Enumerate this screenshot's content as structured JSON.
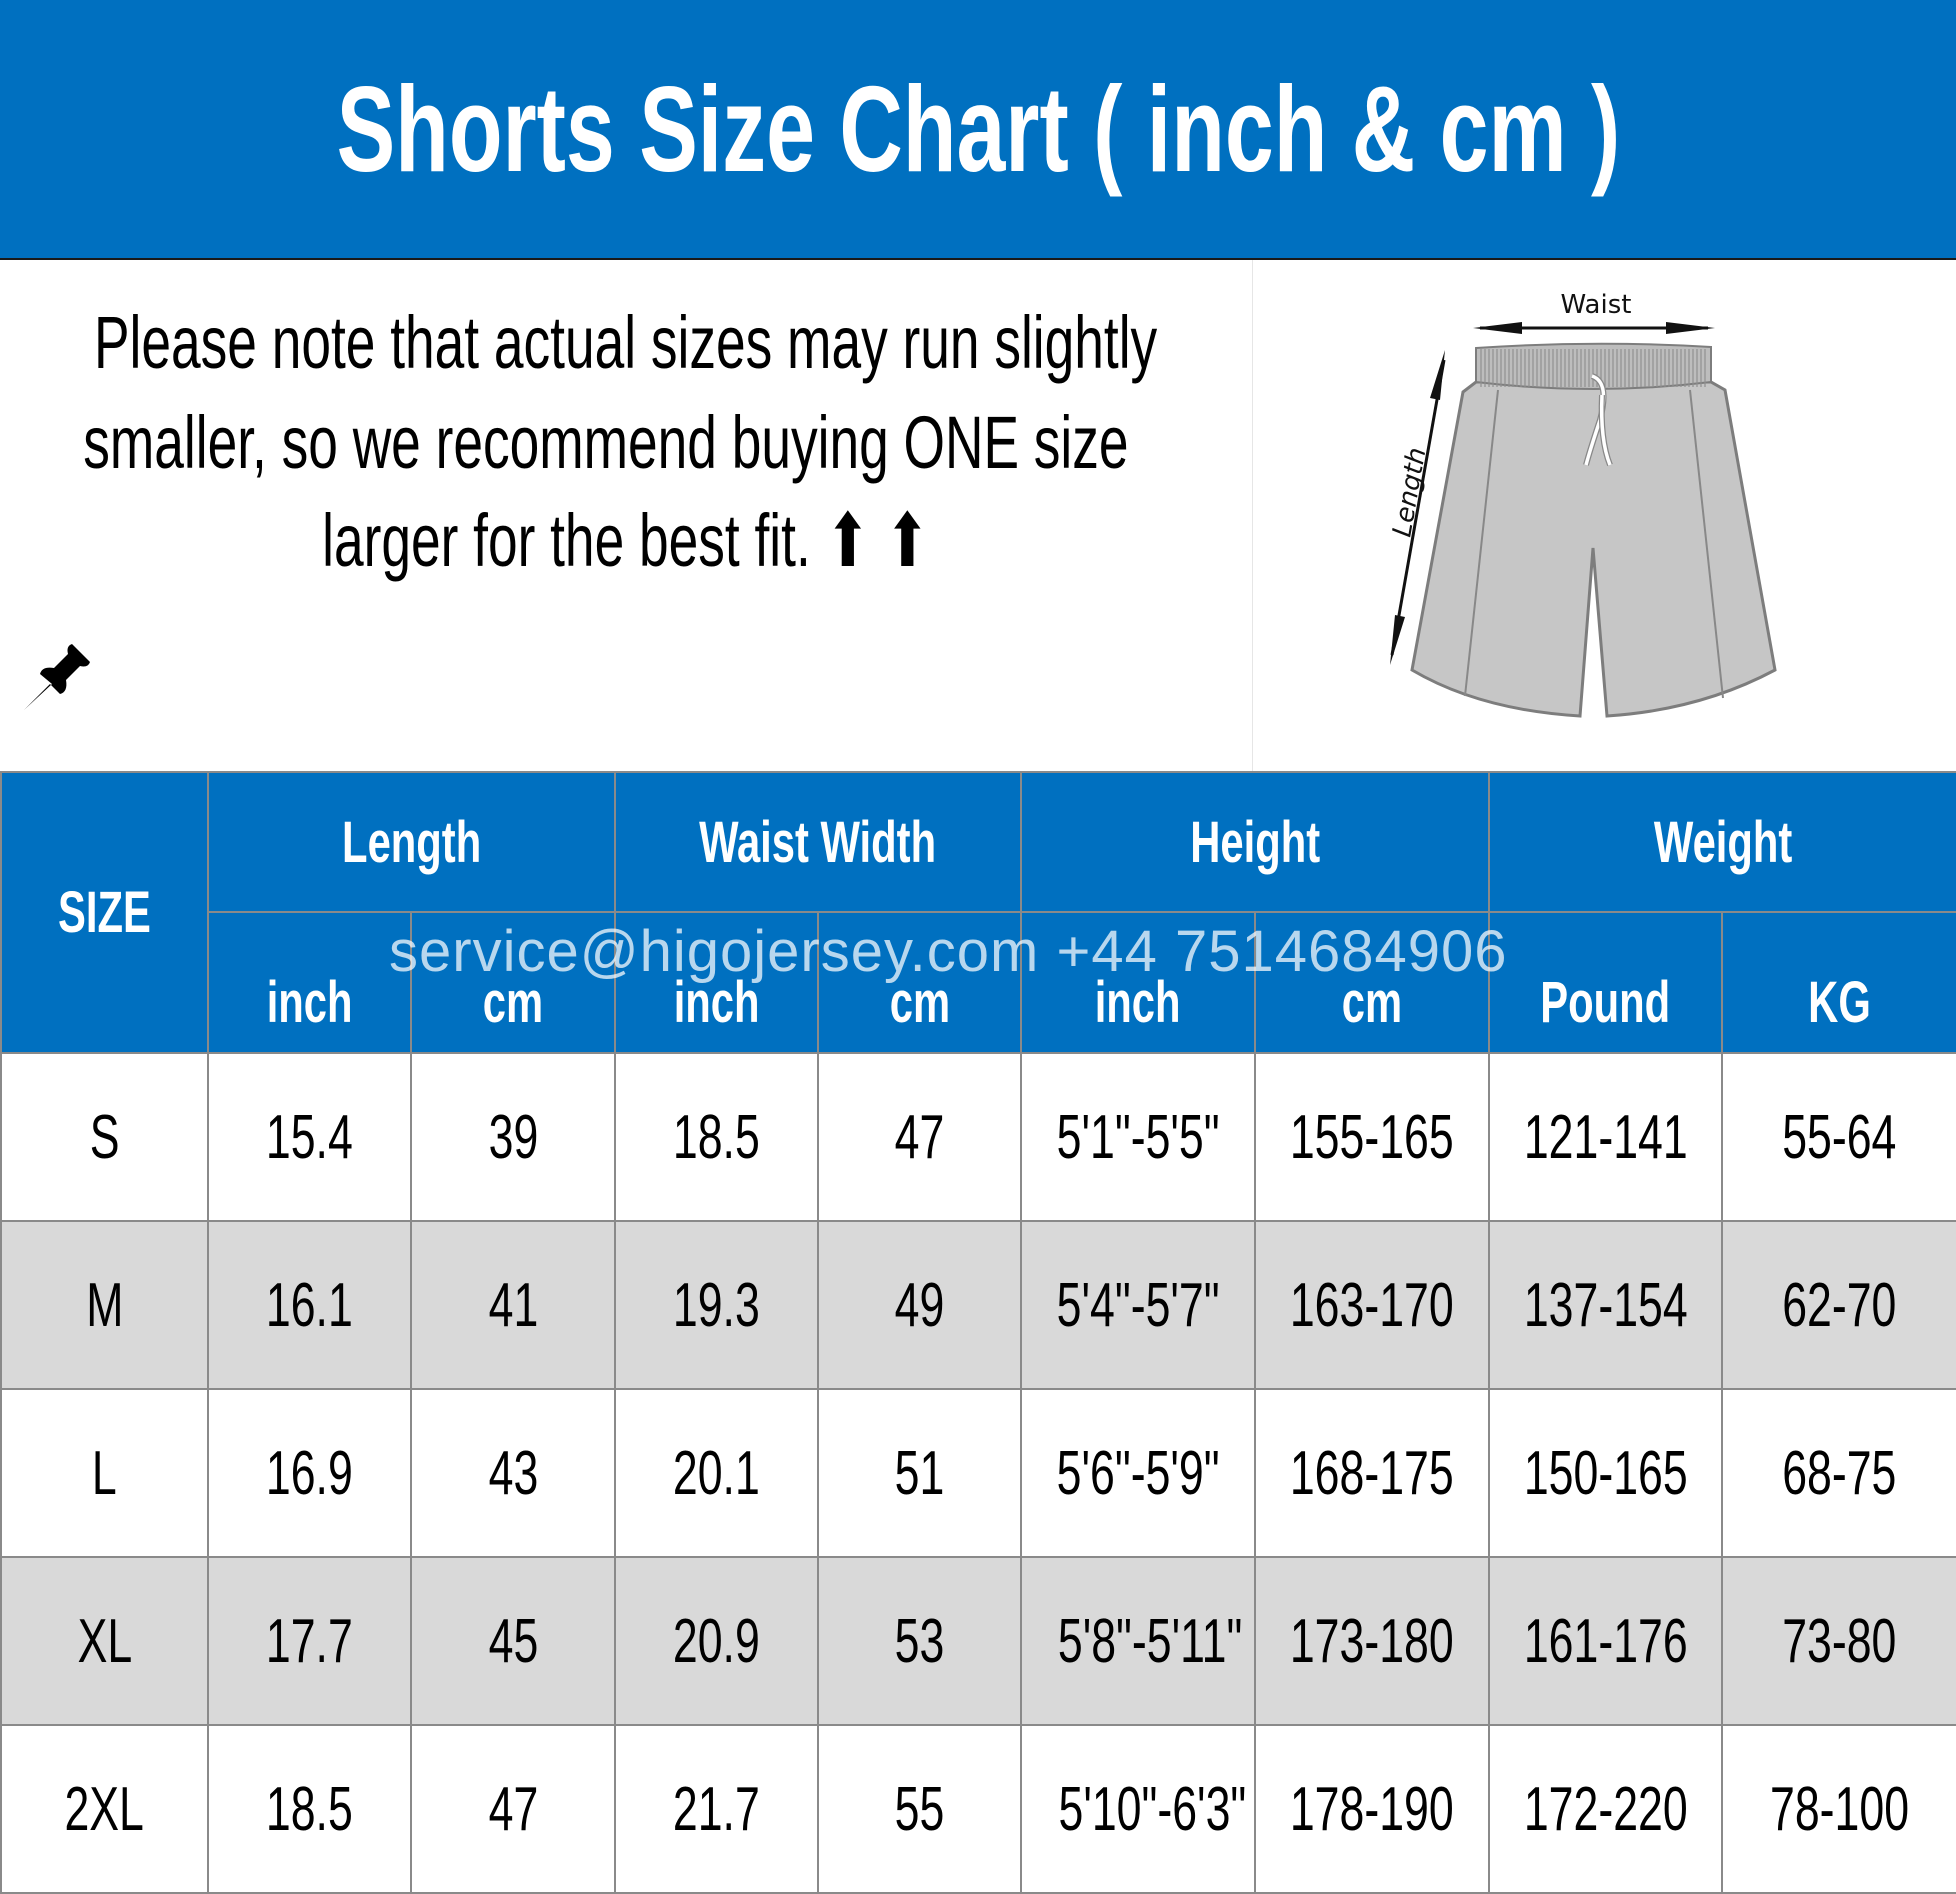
{
  "title": "Shorts Size Chart ( inch & cm )",
  "note": {
    "icon": "pushpin-icon",
    "lines": [
      "Please note that actual sizes may run slightly",
      "smaller, so we recommend buying ONE size",
      "larger for the best fit. ⬆ ⬆"
    ]
  },
  "diagram": {
    "waist_label": "Waist",
    "length_label": "Length"
  },
  "table": {
    "size_header": "SIZE",
    "groups": [
      "Length",
      "Waist Width",
      "Height",
      "Weight"
    ],
    "subheaders": [
      "inch",
      "cm",
      "inch",
      "cm",
      "inch",
      "cm",
      "Pound",
      "KG"
    ],
    "rows": [
      [
        "S",
        "15.4",
        "39",
        "18.5",
        "47",
        "5'1\"-5'5\"",
        "155-165",
        "121-141",
        "55-64"
      ],
      [
        "M",
        "16.1",
        "41",
        "19.3",
        "49",
        "5'4\"-5'7\"",
        "163-170",
        "137-154",
        "62-70"
      ],
      [
        "L",
        "16.9",
        "43",
        "20.1",
        "51",
        "5'6\"-5'9\"",
        "168-175",
        "150-165",
        "68-75"
      ],
      [
        "XL",
        "17.7",
        "45",
        "20.9",
        "53",
        "5'8\"-5'11\"",
        "173-180",
        "161-176",
        "73-80"
      ],
      [
        "2XL",
        "18.5",
        "47",
        "21.7",
        "55",
        "5'10\"-6'3\"",
        "178-190",
        "172-220",
        "78-100"
      ]
    ]
  },
  "watermark": "service@higojersey.com  +44 7514684906",
  "colors": {
    "header_blue": "#0070C0",
    "alt_row_gray": "#D9D9D9"
  }
}
